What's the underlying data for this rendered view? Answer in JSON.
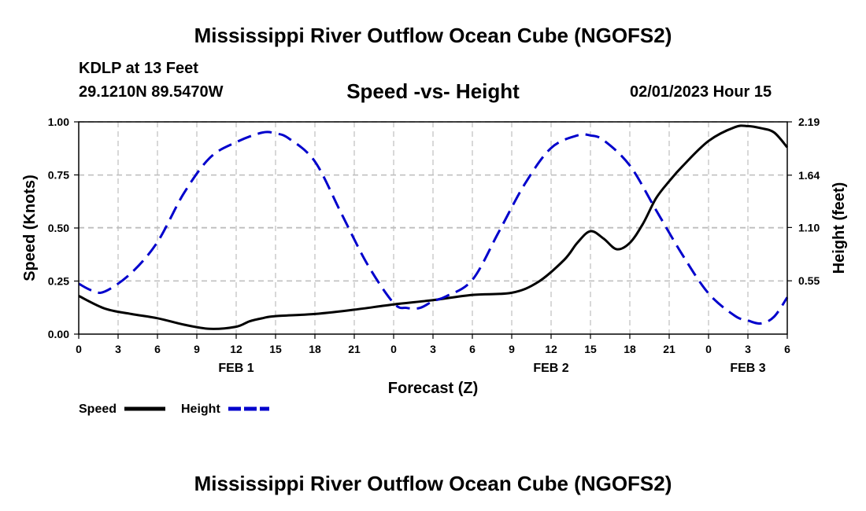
{
  "page": {
    "title": "Mississippi River Outflow Ocean Cube (NGOFS2)",
    "bottom_title": "Mississippi River Outflow Ocean Cube (NGOFS2)",
    "station": "KDLP at 13 Feet",
    "coords": "29.1210N  89.5470W",
    "subtitle": "Speed -vs- Height",
    "datetime": "02/01/2023 Hour 15"
  },
  "chart_data": {
    "type": "line",
    "title": "Speed -vs- Height",
    "xlabel": "Forecast (Z)",
    "ylabel": "Speed (Knots)",
    "y2label": "Height (feet)",
    "xlim": [
      0,
      54
    ],
    "ylim": [
      0,
      1.0
    ],
    "y2lim": [
      0,
      2.19
    ],
    "grid": true,
    "x_ticks": [
      0,
      3,
      6,
      9,
      12,
      15,
      18,
      21,
      24,
      27,
      30,
      33,
      36,
      39,
      42,
      45,
      48,
      51,
      54
    ],
    "x_tick_labels": [
      "0",
      "3",
      "6",
      "9",
      "12",
      "15",
      "18",
      "21",
      "0",
      "3",
      "6",
      "9",
      "12",
      "15",
      "18",
      "21",
      "0",
      "3",
      "6"
    ],
    "day_labels": [
      {
        "x": 12,
        "label": "FEB 1"
      },
      {
        "x": 36,
        "label": "FEB 2"
      },
      {
        "x": 51,
        "label": "FEB 3"
      }
    ],
    "y_ticks": [
      0,
      0.25,
      0.5,
      0.75,
      1.0
    ],
    "y_tick_labels": [
      "0.00",
      "0.25",
      "0.50",
      "0.75",
      "1.00"
    ],
    "y2_ticks": [
      0.55,
      1.1,
      1.64,
      2.19
    ],
    "y2_tick_labels": [
      "0.55",
      "1.10",
      "1.64",
      "2.19"
    ],
    "series": [
      {
        "name": "Speed",
        "axis": "left",
        "color": "#000000",
        "dash": "solid",
        "x": [
          0,
          2,
          4,
          6,
          8,
          10,
          12,
          13,
          14,
          15,
          18,
          21,
          24,
          27,
          30,
          33,
          35,
          37,
          38,
          39,
          40,
          41,
          42,
          43,
          44,
          45,
          46,
          48,
          50,
          51,
          52,
          53,
          54
        ],
        "y": [
          0.18,
          0.12,
          0.095,
          0.075,
          0.045,
          0.025,
          0.035,
          0.06,
          0.075,
          0.085,
          0.095,
          0.115,
          0.14,
          0.16,
          0.185,
          0.195,
          0.245,
          0.35,
          0.43,
          0.485,
          0.45,
          0.4,
          0.43,
          0.52,
          0.64,
          0.72,
          0.79,
          0.91,
          0.975,
          0.98,
          0.97,
          0.95,
          0.88
        ]
      },
      {
        "name": "Height",
        "axis": "right",
        "color": "#0000cc",
        "dash": "dashed",
        "x": [
          0,
          1,
          2,
          4,
          6,
          8,
          10,
          12,
          14,
          15,
          16,
          18,
          20,
          22,
          24,
          25,
          26,
          27,
          28,
          30,
          32,
          34,
          36,
          38,
          39,
          40,
          42,
          44,
          46,
          48,
          50,
          51,
          52,
          53,
          54
        ],
        "y": [
          0.52,
          0.45,
          0.44,
          0.63,
          0.95,
          1.45,
          1.82,
          1.98,
          2.08,
          2.07,
          2.02,
          1.78,
          1.25,
          0.72,
          0.32,
          0.27,
          0.27,
          0.34,
          0.39,
          0.56,
          1.05,
          1.55,
          1.92,
          2.05,
          2.05,
          2.0,
          1.74,
          1.28,
          0.82,
          0.42,
          0.19,
          0.14,
          0.11,
          0.18,
          0.38
        ]
      }
    ],
    "legend": [
      {
        "label": "Speed",
        "color": "#000000",
        "dash": "solid"
      },
      {
        "label": "Height",
        "color": "#0000cc",
        "dash": "dashed"
      }
    ]
  }
}
